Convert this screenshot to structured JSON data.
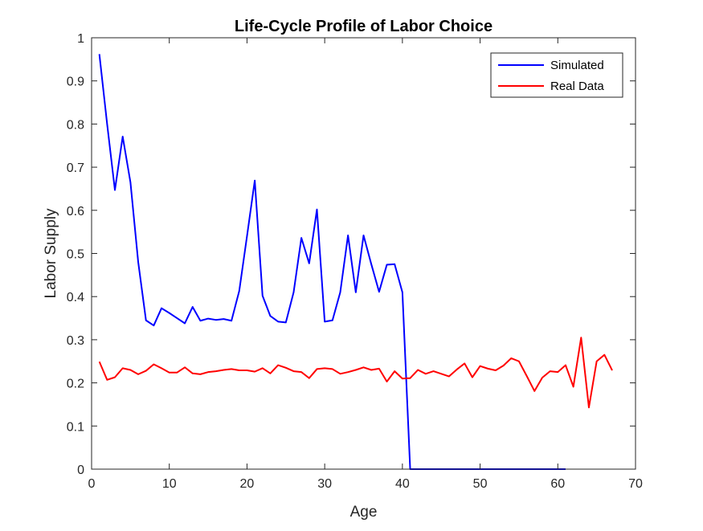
{
  "chart_data": {
    "type": "line",
    "title": "Life-Cycle Profile of Labor Choice",
    "xlabel": "Age",
    "ylabel": "Labor Supply",
    "xlim": [
      0,
      70
    ],
    "ylim": [
      0,
      1
    ],
    "xticks": [
      0,
      10,
      20,
      30,
      40,
      50,
      60,
      70
    ],
    "xtick_labels": [
      "0",
      "10",
      "20",
      "30",
      "40",
      "50",
      "60",
      "70"
    ],
    "yticks": [
      0,
      0.1,
      0.2,
      0.3,
      0.4,
      0.5,
      0.6,
      0.7,
      0.8,
      0.9,
      1
    ],
    "ytick_labels": [
      "0",
      "0.1",
      "0.2",
      "0.3",
      "0.4",
      "0.5",
      "0.6",
      "0.7",
      "0.8",
      "0.9",
      "1"
    ],
    "grid": false,
    "legend_position": "top-right",
    "series": [
      {
        "name": "Simulated",
        "color": "#0000ff",
        "x": [
          1,
          2,
          3,
          4,
          5,
          6,
          7,
          8,
          9,
          10,
          11,
          12,
          13,
          14,
          15,
          16,
          17,
          18,
          19,
          20,
          21,
          22,
          23,
          24,
          25,
          26,
          27,
          28,
          29,
          30,
          31,
          32,
          33,
          34,
          35,
          36,
          37,
          38,
          39,
          40,
          41,
          42,
          43,
          44,
          45,
          46,
          47,
          48,
          49,
          50,
          51,
          52,
          53,
          54,
          55,
          56,
          57,
          58,
          59,
          60,
          61
        ],
        "y": [
          0.962,
          0.8,
          0.647,
          0.771,
          0.665,
          0.48,
          0.345,
          0.333,
          0.373,
          0.362,
          0.35,
          0.338,
          0.376,
          0.344,
          0.349,
          0.346,
          0.348,
          0.344,
          0.413,
          0.54,
          0.669,
          0.402,
          0.355,
          0.342,
          0.34,
          0.41,
          0.536,
          0.477,
          0.602,
          0.342,
          0.345,
          0.41,
          0.542,
          0.41,
          0.542,
          0.475,
          0.411,
          0.474,
          0.475,
          0.41,
          0,
          0,
          0,
          0,
          0,
          0,
          0,
          0,
          0,
          0,
          0,
          0,
          0,
          0,
          0,
          0,
          0,
          0,
          0,
          0,
          0
        ]
      },
      {
        "name": "Real Data",
        "color": "#ff0000",
        "x": [
          1,
          2,
          3,
          4,
          5,
          6,
          7,
          8,
          9,
          10,
          11,
          12,
          13,
          14,
          15,
          16,
          17,
          18,
          19,
          20,
          21,
          22,
          23,
          24,
          25,
          26,
          27,
          28,
          29,
          30,
          31,
          32,
          33,
          34,
          35,
          36,
          37,
          38,
          39,
          40,
          41,
          42,
          43,
          44,
          45,
          46,
          47,
          48,
          49,
          50,
          51,
          52,
          53,
          54,
          55,
          56,
          57,
          58,
          59,
          60,
          61,
          62,
          63,
          64,
          65,
          66,
          67
        ],
        "y": [
          0.249,
          0.207,
          0.213,
          0.234,
          0.23,
          0.22,
          0.228,
          0.243,
          0.234,
          0.224,
          0.224,
          0.236,
          0.222,
          0.22,
          0.225,
          0.227,
          0.23,
          0.232,
          0.229,
          0.229,
          0.226,
          0.234,
          0.222,
          0.241,
          0.235,
          0.227,
          0.225,
          0.211,
          0.232,
          0.234,
          0.232,
          0.221,
          0.225,
          0.23,
          0.236,
          0.23,
          0.233,
          0.203,
          0.227,
          0.21,
          0.211,
          0.23,
          0.221,
          0.227,
          0.221,
          0.215,
          0.231,
          0.245,
          0.213,
          0.239,
          0.233,
          0.229,
          0.24,
          0.257,
          0.25,
          0.216,
          0.181,
          0.212,
          0.227,
          0.225,
          0.241,
          0.191,
          0.305,
          0.143,
          0.25,
          0.265,
          0.229
        ]
      }
    ]
  }
}
